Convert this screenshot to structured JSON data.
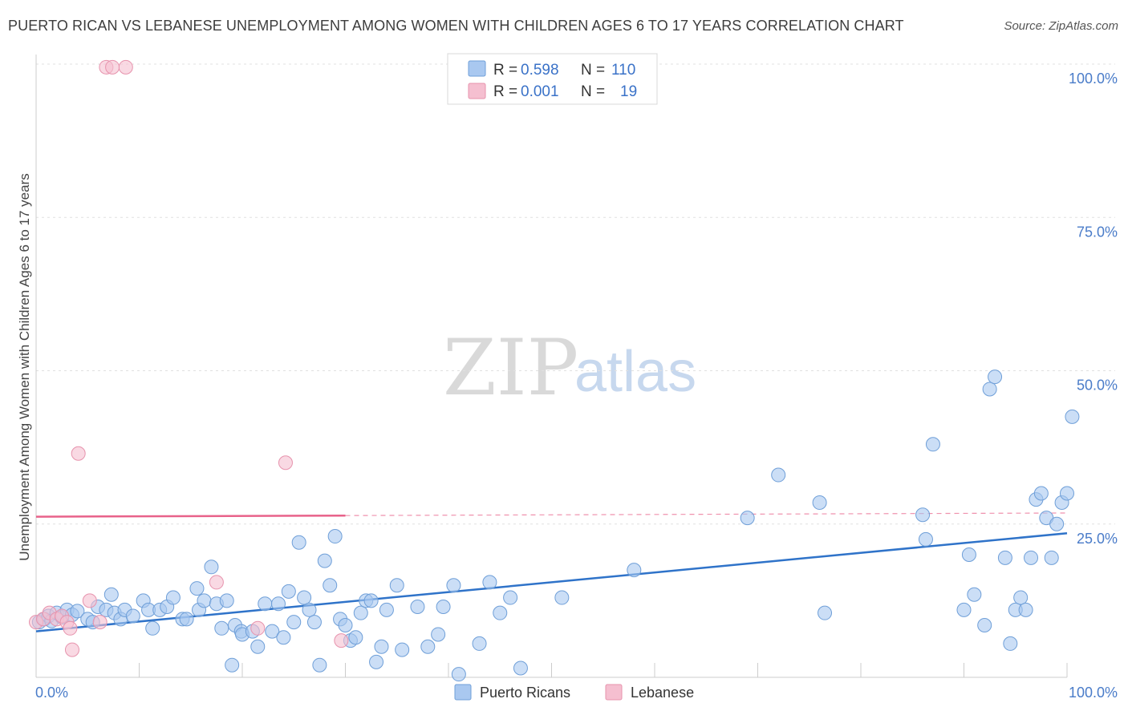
{
  "title": "PUERTO RICAN VS LEBANESE UNEMPLOYMENT AMONG WOMEN WITH CHILDREN AGES 6 TO 17 YEARS CORRELATION CHART",
  "source": "Source: ZipAtlas.com",
  "watermark": {
    "zip": "ZIP",
    "atlas": "atlas"
  },
  "legend": {
    "rows": [
      {
        "r_label": "R = ",
        "r_value": "0.598",
        "n_label": "N = ",
        "n_value": "110"
      },
      {
        "r_label": "R = ",
        "r_value": "0.001",
        "n_label": "N = ",
        "n_value": "19"
      }
    ]
  },
  "bottom_legend": [
    "Puerto Ricans",
    "Lebanese"
  ],
  "colors": {
    "blue_fill": "#a9c8f0",
    "blue_stroke": "#6f9fd8",
    "blue_line": "#2f73c9",
    "pink_fill": "#f5bfd0",
    "pink_stroke": "#e793ad",
    "pink_line": "#e8628a",
    "grid": "#e0e0e0",
    "tick_text": "#4a7cc9"
  },
  "chart_data": {
    "type": "scatter",
    "title": "PUERTO RICAN VS LEBANESE UNEMPLOYMENT AMONG WOMEN WITH CHILDREN AGES 6 TO 17 YEARS CORRELATION CHART",
    "xlabel": "",
    "ylabel": "Unemployment Among Women with Children Ages 6 to 17 years",
    "xlim": [
      0,
      100
    ],
    "ylim": [
      0,
      100
    ],
    "x_tick_labels": [
      "0.0%",
      "100.0%"
    ],
    "y_tick_labels": [
      "25.0%",
      "50.0%",
      "75.0%",
      "100.0%"
    ],
    "y_ticks": [
      25,
      50,
      75,
      100
    ],
    "grid": true,
    "series": [
      {
        "name": "Puerto Ricans",
        "r": 0.598,
        "n": 110,
        "trend": {
          "x": [
            0,
            100
          ],
          "y": [
            7.5,
            23.5
          ],
          "dashed_after": null
        },
        "points": [
          [
            0.3,
            9
          ],
          [
            0.8,
            9.5
          ],
          [
            1.2,
            10
          ],
          [
            1.5,
            9.2
          ],
          [
            2,
            10.5
          ],
          [
            2.5,
            9.8
          ],
          [
            3,
            11
          ],
          [
            3.5,
            10.2
          ],
          [
            4,
            10.8
          ],
          [
            5,
            9.5
          ],
          [
            5.5,
            9
          ],
          [
            6,
            11.5
          ],
          [
            6.8,
            11
          ],
          [
            7.3,
            13.5
          ],
          [
            7.6,
            10.5
          ],
          [
            8.2,
            9.5
          ],
          [
            8.6,
            11
          ],
          [
            9.4,
            10
          ],
          [
            10.4,
            12.5
          ],
          [
            10.9,
            11
          ],
          [
            11.3,
            8
          ],
          [
            12,
            11
          ],
          [
            12.7,
            11.5
          ],
          [
            13.3,
            13
          ],
          [
            14.2,
            9.5
          ],
          [
            14.6,
            9.5
          ],
          [
            15.6,
            14.5
          ],
          [
            15.8,
            11
          ],
          [
            16.3,
            12.5
          ],
          [
            17,
            18
          ],
          [
            17.5,
            12
          ],
          [
            18,
            8
          ],
          [
            18.5,
            12.5
          ],
          [
            19,
            2
          ],
          [
            19.3,
            8.5
          ],
          [
            19.9,
            7.5
          ],
          [
            20,
            7
          ],
          [
            21,
            7.5
          ],
          [
            21.5,
            5
          ],
          [
            22.2,
            12
          ],
          [
            22.9,
            7.5
          ],
          [
            23.5,
            12
          ],
          [
            24,
            6.5
          ],
          [
            24.5,
            14
          ],
          [
            25,
            9
          ],
          [
            25.5,
            22
          ],
          [
            26,
            13
          ],
          [
            26.5,
            11
          ],
          [
            27,
            9
          ],
          [
            27.5,
            2
          ],
          [
            28,
            19
          ],
          [
            28.5,
            15
          ],
          [
            29,
            23
          ],
          [
            29.5,
            9.5
          ],
          [
            30,
            8.5
          ],
          [
            30.5,
            6
          ],
          [
            31,
            6.5
          ],
          [
            31.5,
            10.5
          ],
          [
            32,
            12.5
          ],
          [
            32.5,
            12.5
          ],
          [
            33,
            2.5
          ],
          [
            33.5,
            5
          ],
          [
            34,
            11
          ],
          [
            35,
            15
          ],
          [
            35.5,
            4.5
          ],
          [
            37,
            11.5
          ],
          [
            38,
            5
          ],
          [
            39,
            7
          ],
          [
            39.5,
            11.5
          ],
          [
            40.5,
            15
          ],
          [
            41,
            0.5
          ],
          [
            43,
            5.5
          ],
          [
            44,
            15.5
          ],
          [
            45,
            10.5
          ],
          [
            46,
            13
          ],
          [
            47,
            1.5
          ],
          [
            51,
            13
          ],
          [
            58,
            17.5
          ],
          [
            69,
            26
          ],
          [
            72,
            33
          ],
          [
            76,
            28.5
          ],
          [
            76.5,
            10.5
          ],
          [
            86,
            26.5
          ],
          [
            86.3,
            22.5
          ],
          [
            87,
            38
          ],
          [
            90,
            11
          ],
          [
            90.5,
            20
          ],
          [
            91,
            13.5
          ],
          [
            92.5,
            47
          ],
          [
            93,
            49
          ],
          [
            92,
            8.5
          ],
          [
            94,
            19.5
          ],
          [
            94.5,
            5.5
          ],
          [
            95,
            11
          ],
          [
            95.5,
            13
          ],
          [
            96,
            11
          ],
          [
            96.5,
            19.5
          ],
          [
            97,
            29
          ],
          [
            97.5,
            30
          ],
          [
            98,
            26
          ],
          [
            98.5,
            19.5
          ],
          [
            99,
            25
          ],
          [
            99.5,
            28.5
          ],
          [
            100,
            30
          ],
          [
            100.5,
            42.5
          ]
        ]
      },
      {
        "name": "Lebanese",
        "r": 0.001,
        "n": 19,
        "trend": {
          "x": [
            0,
            100
          ],
          "y": [
            26.2,
            26.8
          ],
          "solid_until_x": 30
        },
        "points": [
          [
            0,
            9
          ],
          [
            0.7,
            9.5
          ],
          [
            1.3,
            10.5
          ],
          [
            2,
            9.5
          ],
          [
            2.5,
            10
          ],
          [
            3,
            9
          ],
          [
            3.3,
            8
          ],
          [
            3.5,
            4.5
          ],
          [
            4.1,
            36.5
          ],
          [
            5.2,
            12.5
          ],
          [
            6.2,
            9
          ],
          [
            6.8,
            99.5
          ],
          [
            7.4,
            99.5
          ],
          [
            8.7,
            99.5
          ],
          [
            17.5,
            15.5
          ],
          [
            21.5,
            8
          ],
          [
            24.2,
            35
          ],
          [
            29.6,
            6
          ]
        ]
      }
    ]
  }
}
